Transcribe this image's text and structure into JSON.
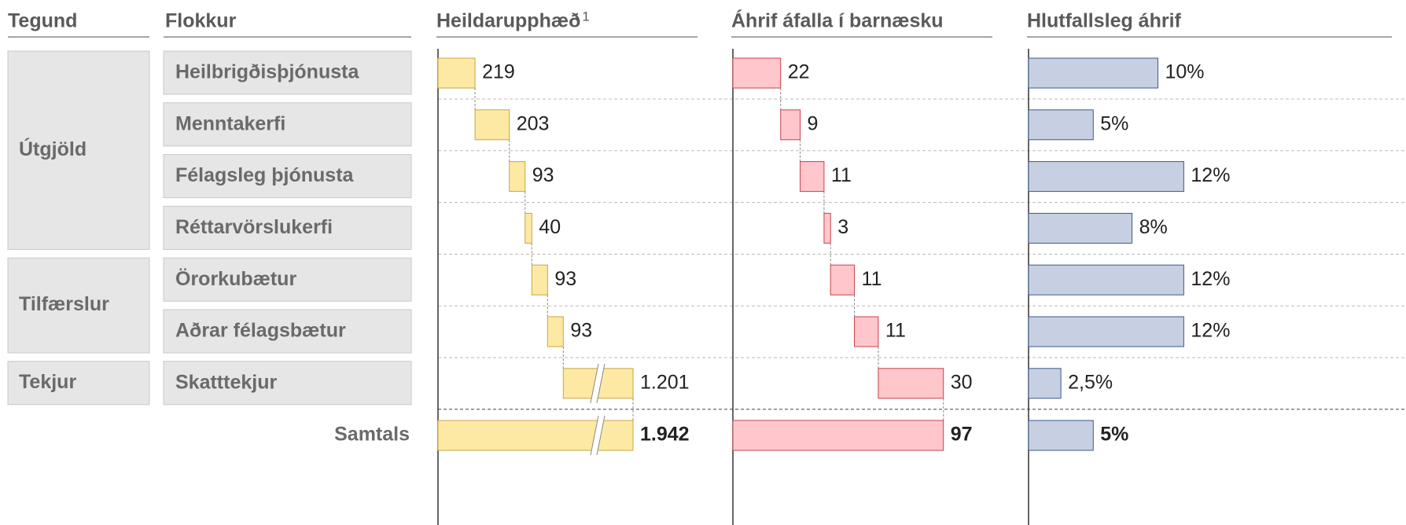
{
  "chart_data": {
    "type": "waterfall",
    "headers": {
      "group": "Tegund",
      "category": "Flokkur"
    },
    "groups": [
      {
        "name": "Útgjöld",
        "categories": [
          "Heilbrigðisþjónusta",
          "Menntakerfi",
          "Félagsleg þjónusta",
          "Réttarvörslukerfi"
        ]
      },
      {
        "name": "Tilfærslur",
        "categories": [
          "Örorkubætur",
          "Aðrar félagsbætur"
        ]
      },
      {
        "name": "Tekjur",
        "categories": [
          "Skatttekjur"
        ]
      }
    ],
    "total_name": "Samtals",
    "series": [
      {
        "name": "Heildarupphæð",
        "footnote": "1",
        "color": "#fde9a3",
        "stroke": "#c8a646",
        "waterfall": true,
        "values": [
          219,
          203,
          93,
          40,
          93,
          93,
          1201
        ],
        "value_labels": [
          "219",
          "203",
          "93",
          "40",
          "93",
          "93",
          "1.201"
        ],
        "total": 1942,
        "total_label": "1.942"
      },
      {
        "name": "Áhrif áfalla í barnæsku",
        "color": "#ffc7cb",
        "stroke": "#c8404c",
        "waterfall": true,
        "values": [
          22,
          9,
          11,
          3,
          11,
          11,
          30
        ],
        "value_labels": [
          "22",
          "9",
          "11",
          "3",
          "11",
          "11",
          "30"
        ],
        "total": 97,
        "total_label": "97"
      },
      {
        "name": "Hlutfallsleg áhrif",
        "color": "#c6d0e2",
        "stroke": "#3d5a8a",
        "waterfall": false,
        "values": [
          10,
          5,
          12,
          8,
          12,
          12,
          2.5
        ],
        "value_labels": [
          "10%",
          "5%",
          "12%",
          "8%",
          "12%",
          "12%",
          "2,5%"
        ],
        "total": 5,
        "total_label": "5%"
      }
    ]
  }
}
